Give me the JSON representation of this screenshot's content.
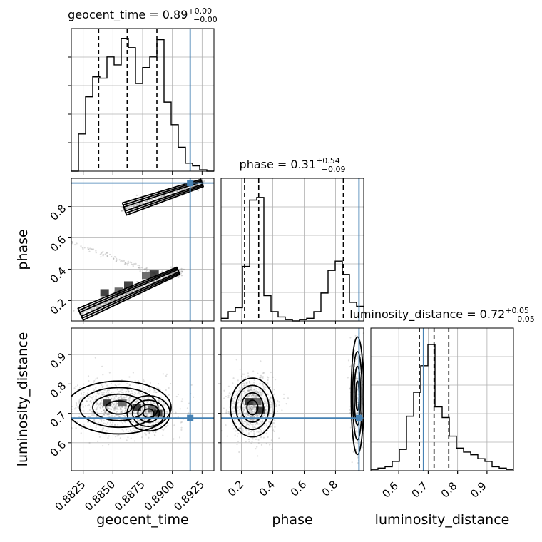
{
  "chart_data": [
    {
      "type": "histogram",
      "panel": "geocent_time-1d",
      "title": {
        "name": "geocent_time",
        "value": "0.89",
        "plus": "+0.00",
        "minus": "−0.00"
      },
      "xlim": [
        0.8815,
        0.8935
      ],
      "ylim": [
        0,
        1.0
      ],
      "bins": {
        "edges_start": 0.8815,
        "width": 0.0006,
        "counts": [
          0.0,
          0.28,
          0.56,
          0.71,
          0.7,
          0.86,
          0.8,
          1.0,
          0.93,
          0.66,
          0.78,
          0.86,
          0.99,
          0.52,
          0.35,
          0.18,
          0.06,
          0.04,
          0.01,
          0.0
        ]
      },
      "quantiles": [
        0.8838,
        0.8862,
        0.8887
      ],
      "truth": 0.8915,
      "xticks": [
        0.8825,
        0.885,
        0.8875,
        0.89,
        0.8925
      ]
    },
    {
      "type": "histogram",
      "panel": "phase-1d",
      "title": {
        "name": "phase",
        "value": "0.31",
        "plus": "+0.54",
        "minus": "−0.09"
      },
      "xlim": [
        0.07,
        0.98
      ],
      "ylim": [
        0,
        1.0
      ],
      "bins": {
        "edges_start": 0.07,
        "width": 0.0455,
        "counts": [
          0.02,
          0.07,
          0.1,
          0.41,
          0.91,
          0.93,
          0.19,
          0.07,
          0.03,
          0.01,
          0.0,
          0.01,
          0.02,
          0.07,
          0.21,
          0.38,
          0.45,
          0.35,
          0.14,
          0.11
        ]
      },
      "quantiles": [
        0.22,
        0.31,
        0.85
      ],
      "truth": 0.95,
      "xticks": [
        0.2,
        0.4,
        0.6,
        0.8
      ],
      "xticklabels": [
        "0.2",
        "0.4",
        "0.6",
        "0.8"
      ]
    },
    {
      "type": "histogram",
      "panel": "luminosity_distance-1d",
      "title": {
        "name": "luminosity_distance",
        "value": "0.72",
        "plus": "+0.05",
        "minus": "−0.05"
      },
      "xlim": [
        0.505,
        0.99
      ],
      "ylim": [
        0,
        1.0
      ],
      "bins": {
        "edges_start": 0.505,
        "width": 0.02425,
        "counts": [
          0.01,
          0.02,
          0.03,
          0.07,
          0.16,
          0.41,
          0.59,
          0.79,
          0.95,
          0.48,
          0.4,
          0.26,
          0.17,
          0.14,
          0.12,
          0.09,
          0.07,
          0.03,
          0.02,
          0.01
        ]
      },
      "quantiles": [
        0.67,
        0.72,
        0.77
      ],
      "truth": 0.684,
      "xticks": [
        0.6,
        0.7,
        0.8,
        0.9
      ],
      "xticklabels": [
        "0.6",
        "0.7",
        "0.8",
        "0.9"
      ]
    },
    {
      "type": "scatter_contour",
      "panel": "geocent_time-vs-phase",
      "xlim": [
        0.8815,
        0.8935
      ],
      "ylim": [
        0.07,
        0.98
      ],
      "truth": [
        0.8915,
        0.95
      ],
      "yticks": [
        0.2,
        0.4,
        0.6,
        0.8
      ],
      "yticklabels": [
        "0.2",
        "0.4",
        "0.6",
        "0.8"
      ],
      "ylabel": "phase",
      "density_ridges": [
        {
          "from": [
            0.8825,
            0.12
          ],
          "to": [
            0.8905,
            0.39
          ],
          "weight": 1.0
        },
        {
          "from": [
            0.8862,
            0.79
          ],
          "to": [
            0.8925,
            0.95
          ],
          "weight": 0.55
        }
      ],
      "hot_cells": [
        [
          0.8843,
          0.25
        ],
        [
          0.8855,
          0.26
        ],
        [
          0.8863,
          0.3
        ],
        [
          0.8878,
          0.36
        ],
        [
          0.8885,
          0.37
        ]
      ]
    },
    {
      "type": "scatter_contour",
      "panel": "geocent_time-vs-luminosity_distance",
      "xlim": [
        0.8815,
        0.8935
      ],
      "ylim": [
        0.505,
        0.99
      ],
      "truth": [
        0.8915,
        0.684
      ],
      "yticks": [
        0.6,
        0.7,
        0.8,
        0.9
      ],
      "yticklabels": [
        "0.6",
        "0.7",
        "0.8",
        "0.9"
      ],
      "xticks": [
        0.8825,
        0.885,
        0.8875,
        0.89,
        0.8925
      ],
      "xticklabels": [
        "0.8825",
        "0.8850",
        "0.8875",
        "0.8900",
        "0.8925"
      ],
      "xlabel": "geocent_time",
      "ylabel": "luminosity_distance",
      "density_blobs": [
        {
          "center": [
            0.8855,
            0.72
          ],
          "sx": 0.0022,
          "sy": 0.045
        },
        {
          "center": [
            0.888,
            0.7
          ],
          "sx": 0.0009,
          "sy": 0.03
        }
      ],
      "hot_cells": [
        [
          0.8845,
          0.735
        ],
        [
          0.8858,
          0.735
        ],
        [
          0.887,
          0.72
        ],
        [
          0.8883,
          0.715
        ],
        [
          0.8888,
          0.7
        ]
      ]
    },
    {
      "type": "scatter_contour",
      "panel": "phase-vs-luminosity_distance",
      "xlim": [
        0.07,
        0.98
      ],
      "ylim": [
        0.505,
        0.99
      ],
      "truth": [
        0.95,
        0.684
      ],
      "xticks": [
        0.2,
        0.4,
        0.6,
        0.8
      ],
      "xticklabels": [
        "0.2",
        "0.4",
        "0.6",
        "0.8"
      ],
      "xlabel": "phase",
      "density_blobs": [
        {
          "center": [
            0.27,
            0.72
          ],
          "sx": 0.07,
          "sy": 0.05
        },
        {
          "center": [
            0.94,
            0.76
          ],
          "sx": 0.02,
          "sy": 0.1
        }
      ],
      "hot_cells": [
        [
          0.25,
          0.74
        ],
        [
          0.3,
          0.74
        ],
        [
          0.32,
          0.71
        ]
      ]
    },
    {
      "panel": "luminosity_distance-xaxis",
      "xlabel": "luminosity_distance"
    }
  ],
  "colors": {
    "truth": "#4682b4",
    "hist": "#000000",
    "grid": "#b0b0b0",
    "scatter": "#808080"
  }
}
